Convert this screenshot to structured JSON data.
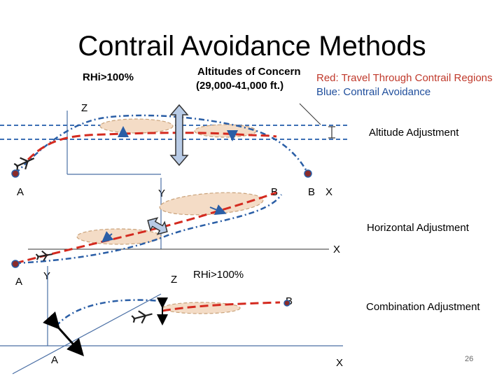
{
  "title": "Contrail Avoidance Methods",
  "top_labels": {
    "rhi": "RHi>100%",
    "concern_line1": "Altitudes of Concern",
    "concern_line2": "(29,000-41,000 ft.)",
    "red_legend": "Red: Travel Through Contrail Regions",
    "blue_legend": "Blue: Contrail Avoidance"
  },
  "panels": {
    "altitude": {
      "label": "Altitude Adjustment",
      "axis_z": "Z",
      "axis_y": "Y",
      "axis_x": "X",
      "point_a": "A",
      "point_b": "B"
    },
    "horizontal": {
      "label": "Horizontal Adjustment",
      "axis_z": "Z",
      "axis_y": "Y",
      "axis_x": "X",
      "point_a": "A",
      "point_b": "B"
    },
    "combination": {
      "label": "Combination Adjustment",
      "rhi": "RHi>100%",
      "axis_x": "X",
      "point_a": "A",
      "point_b": "B"
    }
  },
  "page_number": "26",
  "colors": {
    "red_path": "#d42a1f",
    "blue_path": "#2a5ea6",
    "region_fill": "#f4dcc6",
    "region_stroke": "#c9a27a",
    "arrow_fill": "#b8cbe6",
    "dashed_band": "#3d6fb5"
  }
}
